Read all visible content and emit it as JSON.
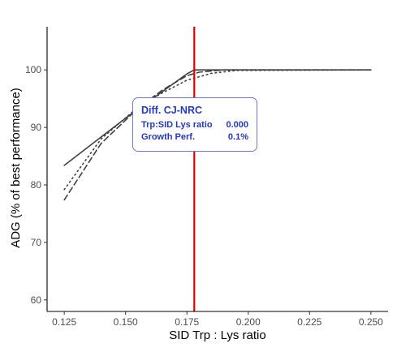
{
  "chart_data": {
    "type": "line",
    "title": "",
    "xlabel": "SID Trp : Lys ratio",
    "ylabel": "ADG (% of best performance)",
    "xlim": [
      0.118,
      0.257
    ],
    "ylim": [
      58,
      107.5
    ],
    "x_ticks": [
      0.125,
      0.15,
      0.175,
      0.2,
      0.225,
      0.25
    ],
    "x_tick_labels": [
      "0.125",
      "0.150",
      "0.175",
      "0.200",
      "0.225",
      "0.250"
    ],
    "y_ticks": [
      60,
      70,
      80,
      90,
      100
    ],
    "y_tick_labels": [
      "60",
      "70",
      "80",
      "90",
      "100"
    ],
    "grid": false,
    "legend": "none",
    "series": [
      {
        "line_style": "solid",
        "x": [
          0.125,
          0.15,
          0.175,
          0.178,
          0.19,
          0.25
        ],
        "y": [
          83.4,
          91.6,
          99.3,
          100.0,
          100.0,
          100.0
        ]
      },
      {
        "line_style": "dashed",
        "x": [
          0.125,
          0.14,
          0.155,
          0.165,
          0.175,
          0.18,
          0.19,
          0.25
        ],
        "y": [
          77.4,
          87.2,
          93.3,
          96.5,
          99.0,
          99.6,
          100.0,
          100.0
        ]
      },
      {
        "line_style": "dotted",
        "x": [
          0.125,
          0.14,
          0.155,
          0.165,
          0.175,
          0.185,
          0.195,
          0.25
        ],
        "y": [
          79.2,
          88.0,
          93.5,
          96.0,
          98.2,
          99.4,
          99.9,
          100.0
        ]
      }
    ],
    "vline": {
      "x": 0.178,
      "color": "#e00000"
    },
    "line_color": "#404040",
    "tooltip": {
      "title": "Diff. CJ-NRC",
      "rows": [
        {
          "label": "Trp:SID Lys ratio",
          "value": "0.000"
        },
        {
          "label": "Growth Perf.",
          "value": "0.1%"
        }
      ],
      "color": "#2338c4",
      "border_color": "#6b74e8"
    }
  }
}
